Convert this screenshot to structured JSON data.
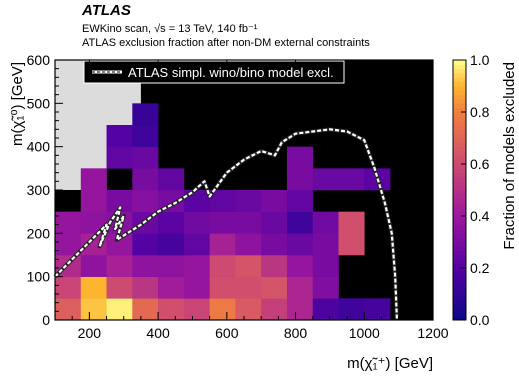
{
  "header": {
    "experiment": "ATLAS",
    "line1": "EWKino scan, √s = 13 TeV, 140 fb⁻¹",
    "line2": "ATLAS exclusion fraction after non-DM external constraints"
  },
  "chart_data": {
    "type": "heatmap",
    "xlabel": "m(χ̃₁⁺) [GeV]",
    "ylabel": "m(χ̃₁⁰) [GeV]",
    "colorbar_label": "Fraction of models excluded",
    "xlim": [
      100,
      1200
    ],
    "ylim": [
      0,
      600
    ],
    "x_ticks": [
      200,
      400,
      600,
      800,
      1000,
      1200
    ],
    "y_ticks": [
      0,
      100,
      200,
      300,
      400,
      500,
      600
    ],
    "colorbar_ticks": [
      0.0,
      0.2,
      0.4,
      0.6,
      0.8,
      1.0
    ],
    "colorbar_ticklabels": [
      "0.0",
      "0.2",
      "0.4",
      "0.6",
      "0.8",
      "1.0"
    ],
    "bin_width_x": 75,
    "bin_height_y": 50,
    "colors": {
      "excluded_all": "#000000",
      "no_models": "#dcdcdc",
      "contour": "#ffffff"
    },
    "legend": {
      "label": "ATLAS simpl. wino/bino model excl.",
      "position": "top-left"
    },
    "gray_region": [
      [
        100,
        600
      ],
      [
        350,
        600
      ],
      [
        350,
        350
      ],
      [
        250,
        350
      ],
      [
        250,
        300
      ],
      [
        100,
        300
      ]
    ],
    "cells": [
      {
        "x": 100,
        "y": 0,
        "v": 0.68
      },
      {
        "x": 175,
        "y": 0,
        "v": 0.92
      },
      {
        "x": 250,
        "y": 0,
        "v": 0.98
      },
      {
        "x": 325,
        "y": 0,
        "v": 0.72
      },
      {
        "x": 400,
        "y": 0,
        "v": 0.62
      },
      {
        "x": 475,
        "y": 0,
        "v": 0.58
      },
      {
        "x": 550,
        "y": 0,
        "v": 0.78
      },
      {
        "x": 625,
        "y": 0,
        "v": 0.66
      },
      {
        "x": 700,
        "y": 0,
        "v": 0.56
      },
      {
        "x": 775,
        "y": 0,
        "v": 0.46
      },
      {
        "x": 850,
        "y": 0,
        "v": 0.18
      },
      {
        "x": 925,
        "y": 0,
        "v": 0.14
      },
      {
        "x": 1000,
        "y": 0,
        "v": 0.16
      },
      {
        "x": 100,
        "y": 50,
        "v": 0.58
      },
      {
        "x": 175,
        "y": 50,
        "v": 0.9
      },
      {
        "x": 250,
        "y": 50,
        "v": 0.6
      },
      {
        "x": 325,
        "y": 50,
        "v": 0.52
      },
      {
        "x": 400,
        "y": 50,
        "v": 0.42
      },
      {
        "x": 475,
        "y": 50,
        "v": 0.38
      },
      {
        "x": 550,
        "y": 50,
        "v": 0.62
      },
      {
        "x": 625,
        "y": 50,
        "v": 0.62
      },
      {
        "x": 700,
        "y": 50,
        "v": 0.64
      },
      {
        "x": 775,
        "y": 50,
        "v": 0.46
      },
      {
        "x": 850,
        "y": 50,
        "v": 0.32
      },
      {
        "x": 100,
        "y": 100,
        "v": 0.48
      },
      {
        "x": 175,
        "y": 100,
        "v": 0.36
      },
      {
        "x": 250,
        "y": 100,
        "v": 0.44
      },
      {
        "x": 325,
        "y": 100,
        "v": 0.36
      },
      {
        "x": 400,
        "y": 100,
        "v": 0.36
      },
      {
        "x": 475,
        "y": 100,
        "v": 0.38
      },
      {
        "x": 550,
        "y": 100,
        "v": 0.6
      },
      {
        "x": 625,
        "y": 100,
        "v": 0.64
      },
      {
        "x": 700,
        "y": 100,
        "v": 0.52
      },
      {
        "x": 775,
        "y": 100,
        "v": 0.38
      },
      {
        "x": 850,
        "y": 100,
        "v": 0.3
      },
      {
        "x": 100,
        "y": 150,
        "v": 0.38
      },
      {
        "x": 175,
        "y": 150,
        "v": 0.44
      },
      {
        "x": 250,
        "y": 150,
        "v": 0.38
      },
      {
        "x": 325,
        "y": 150,
        "v": 0.2
      },
      {
        "x": 400,
        "y": 150,
        "v": 0.16
      },
      {
        "x": 475,
        "y": 150,
        "v": 0.24
      },
      {
        "x": 550,
        "y": 150,
        "v": 0.44
      },
      {
        "x": 625,
        "y": 150,
        "v": 0.36
      },
      {
        "x": 700,
        "y": 150,
        "v": 0.3
      },
      {
        "x": 775,
        "y": 150,
        "v": 0.26
      },
      {
        "x": 850,
        "y": 150,
        "v": 0.3
      },
      {
        "x": 925,
        "y": 150,
        "v": 0.62
      },
      {
        "x": 100,
        "y": 200,
        "v": 0.38
      },
      {
        "x": 175,
        "y": 200,
        "v": 0.36
      },
      {
        "x": 250,
        "y": 200,
        "v": 0.34
      },
      {
        "x": 325,
        "y": 200,
        "v": 0.26
      },
      {
        "x": 400,
        "y": 200,
        "v": 0.22
      },
      {
        "x": 475,
        "y": 200,
        "v": 0.28
      },
      {
        "x": 550,
        "y": 200,
        "v": 0.3
      },
      {
        "x": 625,
        "y": 200,
        "v": 0.3
      },
      {
        "x": 700,
        "y": 200,
        "v": 0.26
      },
      {
        "x": 775,
        "y": 200,
        "v": 0.14
      },
      {
        "x": 850,
        "y": 200,
        "v": 0.28
      },
      {
        "x": 925,
        "y": 200,
        "v": 0.62
      },
      {
        "x": 175,
        "y": 250,
        "v": 0.38
      },
      {
        "x": 250,
        "y": 250,
        "v": 0.3
      },
      {
        "x": 325,
        "y": 250,
        "v": 0.34
      },
      {
        "x": 400,
        "y": 250,
        "v": 0.3
      },
      {
        "x": 475,
        "y": 250,
        "v": 0.22
      },
      {
        "x": 550,
        "y": 250,
        "v": 0.24
      },
      {
        "x": 625,
        "y": 250,
        "v": 0.26
      },
      {
        "x": 700,
        "y": 250,
        "v": 0.3
      },
      {
        "x": 775,
        "y": 250,
        "v": 0.24
      },
      {
        "x": 175,
        "y": 300,
        "v": 0.38
      },
      {
        "x": 325,
        "y": 300,
        "v": 0.3
      },
      {
        "x": 400,
        "y": 300,
        "v": 0.24
      },
      {
        "x": 775,
        "y": 300,
        "v": 0.3
      },
      {
        "x": 850,
        "y": 300,
        "v": 0.26
      },
      {
        "x": 925,
        "y": 300,
        "v": 0.26
      },
      {
        "x": 1000,
        "y": 300,
        "v": 0.22
      },
      {
        "x": 250,
        "y": 350,
        "v": 0.24
      },
      {
        "x": 325,
        "y": 350,
        "v": 0.26
      },
      {
        "x": 775,
        "y": 350,
        "v": 0.3
      },
      {
        "x": 250,
        "y": 400,
        "v": 0.2
      },
      {
        "x": 325,
        "y": 400,
        "v": 0.14
      },
      {
        "x": 325,
        "y": 450,
        "v": 0.12
      }
    ],
    "contour": [
      [
        100,
        100
      ],
      [
        200,
        180
      ],
      [
        250,
        220
      ],
      [
        230,
        170
      ],
      [
        260,
        225
      ],
      [
        290,
        260
      ],
      [
        275,
        210
      ],
      [
        300,
        240
      ],
      [
        280,
        185
      ],
      [
        350,
        220
      ],
      [
        400,
        250
      ],
      [
        450,
        270
      ],
      [
        500,
        295
      ],
      [
        535,
        320
      ],
      [
        550,
        285
      ],
      [
        600,
        340
      ],
      [
        650,
        370
      ],
      [
        700,
        390
      ],
      [
        740,
        380
      ],
      [
        760,
        410
      ],
      [
        800,
        430
      ],
      [
        850,
        435
      ],
      [
        900,
        440
      ],
      [
        950,
        435
      ],
      [
        1000,
        415
      ],
      [
        1030,
        350
      ],
      [
        1060,
        270
      ],
      [
        1080,
        200
      ],
      [
        1090,
        100
      ],
      [
        1095,
        0
      ]
    ]
  }
}
